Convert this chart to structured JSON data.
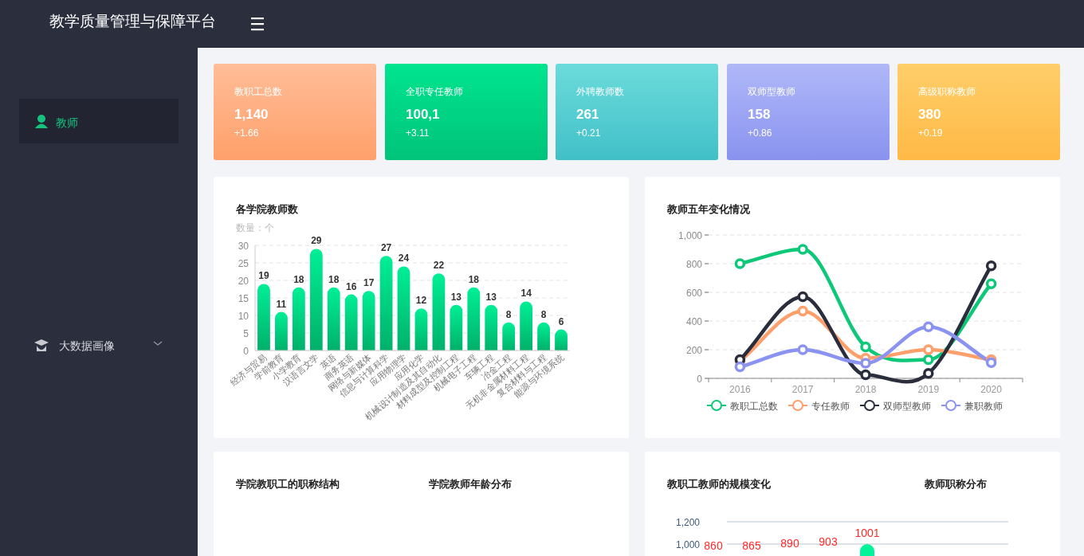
{
  "chart_data": [
    {
      "type": "other",
      "title": "教学质量管理与保障平台",
      "annotations": [
        "教师",
        "大数据画像"
      ]
    },
    {
      "type": "other",
      "title": "教职工总数",
      "annotations": [
        "1,140",
        "+1.66"
      ],
      "colors": [
        "#ffbd98",
        "#ffa06a"
      ]
    },
    {
      "type": "other",
      "title": "全职专任教师",
      "annotations": [
        "100,1",
        "+3.11"
      ],
      "colors": [
        "#00e58f",
        "#00c37a"
      ]
    },
    {
      "type": "other",
      "title": "外聘教师数",
      "annotations": [
        "261",
        "+0.21"
      ],
      "colors": [
        "#6cdbdb",
        "#41c0c8"
      ]
    },
    {
      "type": "other",
      "title": "双师型教师",
      "annotations": [
        "158",
        "+0.86"
      ],
      "colors": [
        "#b0b8f8",
        "#8993ef"
      ]
    },
    {
      "type": "other",
      "title": "高级职称教师",
      "annotations": [
        "380",
        "+0.19"
      ],
      "colors": [
        "#ffce6a",
        "#ffb945"
      ]
    },
    {
      "type": "bar",
      "title": "各学院教师数",
      "ylabel": "数量：个",
      "categories": [
        "经济与贸易",
        "学前教育",
        "小学教育",
        "汉语言文学",
        "英语",
        "商务英语",
        "网络与新媒体",
        "信息与计算科学",
        "应用物理学",
        "应用化学",
        "机械设计制造及其自动化",
        "材料成型及控制工程",
        "机械电子工程",
        "车辆工程",
        "冶金工程",
        "无机非金属材料工程",
        "复合材料与工程",
        "能源与环境系统"
      ],
      "values": [
        19,
        11,
        18,
        29,
        18,
        16,
        17,
        27,
        24,
        12,
        22,
        13,
        18,
        13,
        8,
        14,
        8,
        6
      ],
      "color": "#00ef96",
      "ylim": [
        0,
        30
      ],
      "yticks": [
        0,
        5,
        10,
        15,
        20,
        25,
        30
      ],
      "grid": "y",
      "data_labels": true
    },
    {
      "type": "line",
      "title": "教师五年变化情况",
      "categories": [
        "2016",
        "2017",
        "2018",
        "2019",
        "2020"
      ],
      "series": [
        {
          "name": "教职工总数",
          "color": "#0dc878",
          "values": [
            800,
            900,
            220,
            130,
            660
          ]
        },
        {
          "name": "专任教师",
          "color": "#ff9f6b",
          "values": [
            120,
            470,
            140,
            200,
            130
          ]
        },
        {
          "name": "双师型教师",
          "color": "#2a2d3c",
          "values": [
            130,
            570,
            25,
            35,
            785
          ]
        },
        {
          "name": "兼职教师",
          "color": "#8b93f0",
          "values": [
            80,
            200,
            105,
            360,
            110
          ]
        }
      ],
      "ylim": [
        0,
        1000
      ],
      "yticks": [
        0,
        200,
        400,
        600,
        800,
        {
          "value": 1000,
          "label": "1,000"
        }
      ],
      "grid": "y",
      "legend": "bottom",
      "marker": "circle"
    },
    {
      "type": "other",
      "title": "学院教职工的职称结构"
    },
    {
      "type": "other",
      "title": "学院教师年龄分布"
    },
    {
      "type": "other",
      "title": "教职工教师的规模变化",
      "annotations": [
        "1,200",
        "1,000",
        "860",
        "865",
        "890",
        "903",
        "1001"
      ]
    },
    {
      "type": "other",
      "title": "教师职称分布"
    }
  ]
}
